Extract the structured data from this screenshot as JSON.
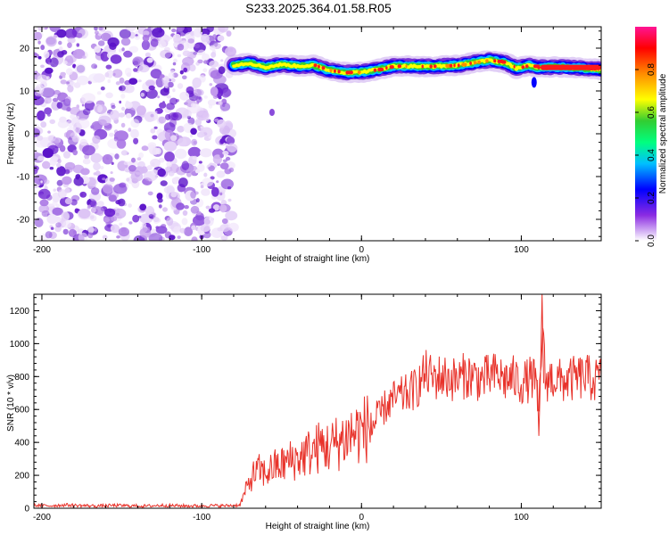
{
  "title": "S233.2025.364.01.58.R05",
  "chart_data": [
    {
      "type": "heatmap",
      "name": "spectrogram",
      "xlabel": "Height of straight line (km)",
      "ylabel": "Frequency (Hz)",
      "xlim": [
        -205,
        150
      ],
      "ylim": [
        -25,
        25
      ],
      "xticks": [
        -200,
        -100,
        0,
        100
      ],
      "yticks": [
        -20,
        -10,
        0,
        10,
        20
      ],
      "noise_region_x": [
        -205,
        -80
      ],
      "noise_scatter_point": {
        "x": -56,
        "y": 5
      },
      "signal_track": [
        [
          -80,
          16.0
        ],
        [
          -70,
          16.5
        ],
        [
          -60,
          15.5
        ],
        [
          -50,
          16.2
        ],
        [
          -40,
          15.8
        ],
        [
          -30,
          16.0
        ],
        [
          -20,
          14.8
        ],
        [
          -10,
          14.3
        ],
        [
          0,
          14.4
        ],
        [
          10,
          15.0
        ],
        [
          20,
          15.8
        ],
        [
          30,
          15.8
        ],
        [
          40,
          15.7
        ],
        [
          50,
          15.8
        ],
        [
          60,
          16.0
        ],
        [
          70,
          16.6
        ],
        [
          80,
          17.2
        ],
        [
          90,
          16.6
        ],
        [
          97,
          15.3
        ],
        [
          105,
          16.0
        ],
        [
          110,
          15.5
        ],
        [
          120,
          15.6
        ],
        [
          135,
          15.4
        ],
        [
          150,
          15.0
        ]
      ],
      "colorbar": {
        "label": "Normalized spectral amplitude",
        "ticks": [
          0.0,
          0.2,
          0.4,
          0.6,
          0.8
        ],
        "tick_labels": [
          "0.0",
          "0.2",
          "0.4",
          "0.6",
          "0.8"
        ],
        "range": [
          0.0,
          1.0
        ]
      }
    },
    {
      "type": "line",
      "name": "snr",
      "xlabel": "Height of straight line (km)",
      "ylabel": "SNR (10 * v/v)",
      "xlim": [
        -205,
        150
      ],
      "ylim": [
        0,
        1300
      ],
      "xticks": [
        -200,
        -100,
        0,
        100
      ],
      "yticks": [
        0,
        200,
        400,
        600,
        800,
        1000,
        1200
      ],
      "color": "#e8332b",
      "series": [
        {
          "name": "SNR",
          "x": [
            -205,
            -195,
            -185,
            -175,
            -165,
            -155,
            -145,
            -135,
            -125,
            -115,
            -105,
            -95,
            -85,
            -76,
            -72,
            -68,
            -64,
            -60,
            -55,
            -50,
            -45,
            -40,
            -35,
            -30,
            -25,
            -20,
            -15,
            -10,
            -5,
            0,
            5,
            10,
            15,
            20,
            25,
            30,
            35,
            40,
            45,
            50,
            55,
            60,
            65,
            70,
            75,
            80,
            85,
            90,
            95,
            100,
            105,
            108,
            111,
            113,
            115,
            120,
            125,
            130,
            135,
            140,
            145,
            150
          ],
          "y": [
            18,
            15,
            20,
            16,
            14,
            17,
            15,
            13,
            18,
            15,
            14,
            16,
            15,
            20,
            120,
            200,
            230,
            210,
            250,
            260,
            290,
            300,
            330,
            350,
            380,
            370,
            400,
            430,
            460,
            470,
            500,
            540,
            620,
            660,
            680,
            700,
            740,
            820,
            790,
            800,
            790,
            780,
            810,
            800,
            780,
            800,
            810,
            780,
            790,
            760,
            780,
            800,
            560,
            1100,
            780,
            790,
            770,
            780,
            790,
            800,
            780,
            790
          ]
        }
      ]
    }
  ]
}
